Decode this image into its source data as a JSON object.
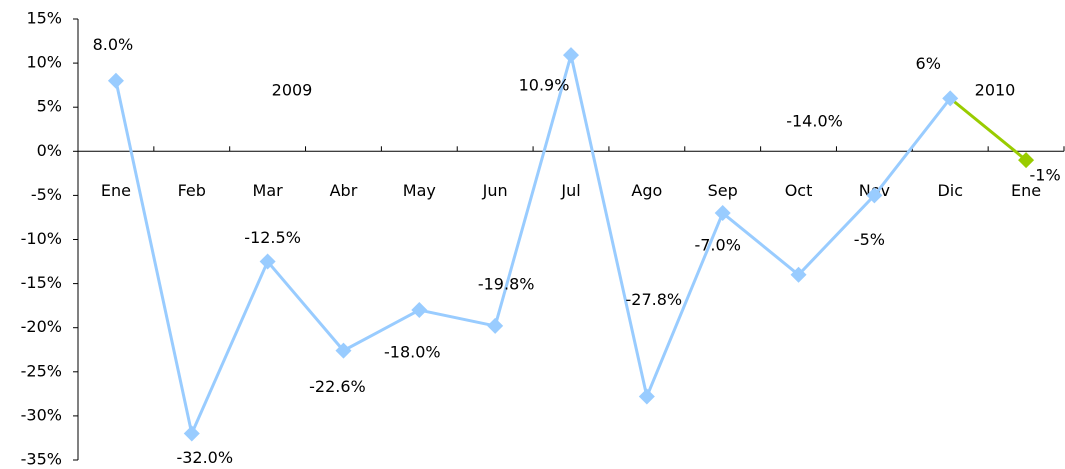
{
  "chart_data": {
    "type": "line",
    "categories": [
      "Ene",
      "Feb",
      "Mar",
      "Abr",
      "May",
      "Jun",
      "Jul",
      "Ago",
      "Sep",
      "Oct",
      "Nov",
      "Dic",
      "Ene"
    ],
    "series": [
      {
        "values": [
          8.0,
          -32.0,
          -12.5,
          -22.6,
          -18.0,
          -19.8,
          10.9,
          -27.8,
          -7.0,
          -14.0,
          -5,
          6,
          -1
        ],
        "value_labels": [
          "8.0%",
          "-32.0%",
          "-12.5%",
          "-22.6%",
          "-18.0%",
          "-19.8%",
          "10.9%",
          "-27.8%",
          "-7.0%",
          "-14.0%",
          "-5%",
          "6%",
          "-1%"
        ],
        "color": "#99ccff",
        "point_colors": [
          "#99ccff",
          "#99ccff",
          "#99ccff",
          "#99ccff",
          "#99ccff",
          "#99ccff",
          "#99ccff",
          "#99ccff",
          "#99ccff",
          "#99ccff",
          "#99ccff",
          "#99ccff",
          "#99cc00"
        ]
      }
    ],
    "annotations": [
      "2009",
      "2010"
    ],
    "ylim": [
      -35,
      15
    ],
    "yticks": [
      {
        "value": -35,
        "label": "-35%"
      },
      {
        "value": -30,
        "label": "-30%"
      },
      {
        "value": -25,
        "label": "-25%"
      },
      {
        "value": -20,
        "label": "-20%"
      },
      {
        "value": -15,
        "label": "-15%"
      },
      {
        "value": -10,
        "label": "-10%"
      },
      {
        "value": -5,
        "label": "-5%"
      },
      {
        "value": 0,
        "label": "0%"
      },
      {
        "value": 5,
        "label": "5%"
      },
      {
        "value": 10,
        "label": "10%"
      },
      {
        "value": 15,
        "label": "15%"
      }
    ]
  }
}
